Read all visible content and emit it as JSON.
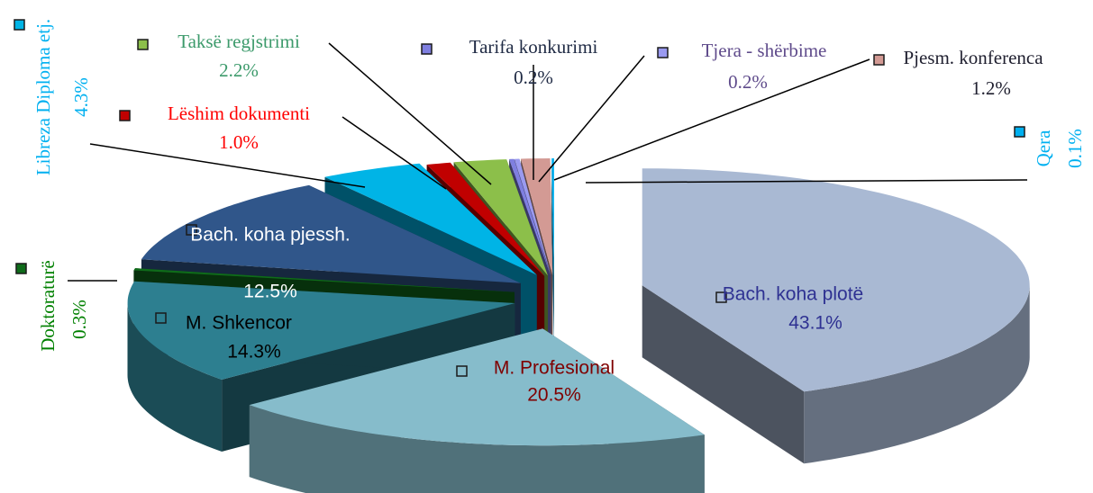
{
  "chart_data": {
    "type": "pie",
    "categories": [
      "Bach. koha plotë",
      "M. Profesional",
      "M. Shkencor",
      "Doktoraturë",
      "Bach. koha pjessh.",
      "Libreza Diploma etj.",
      "Lëshim dokumenti",
      "Taksë regjstrimi",
      "Tarifa konkurimi",
      "Tjera - shërbime",
      "Pjesm. konferenca",
      "Qera"
    ],
    "values": [
      43.1,
      20.5,
      14.3,
      0.3,
      12.5,
      4.3,
      1.0,
      2.2,
      0.2,
      0.2,
      1.2,
      0.1
    ],
    "value_labels": [
      "43.1%",
      "20.5%",
      "14.3%",
      "0.3%",
      "12.5%",
      "4.3%",
      "1.0%",
      "2.2%",
      "0.2%",
      "0.2%",
      "1.2%",
      "0.1%"
    ],
    "colors": [
      "#a9b9d3",
      "#86bccb",
      "#2d7f90",
      "#0f6b1a",
      "#30568a",
      "#00b4e6",
      "#c00000",
      "#8cbf4a",
      "#7f7fe0",
      "#9a9af0",
      "#d39a94",
      "#00b0f0"
    ],
    "label_colors": [
      "#2e3192",
      "#7f0000",
      "#000000",
      "#008000",
      "#ffffff",
      "#00b0f0",
      "#ff0000",
      "#3c9a6b",
      "#1f2a44",
      "#5f4b8b",
      "#1f1f2f",
      "#00b0f0"
    ],
    "legend_keys": true
  }
}
